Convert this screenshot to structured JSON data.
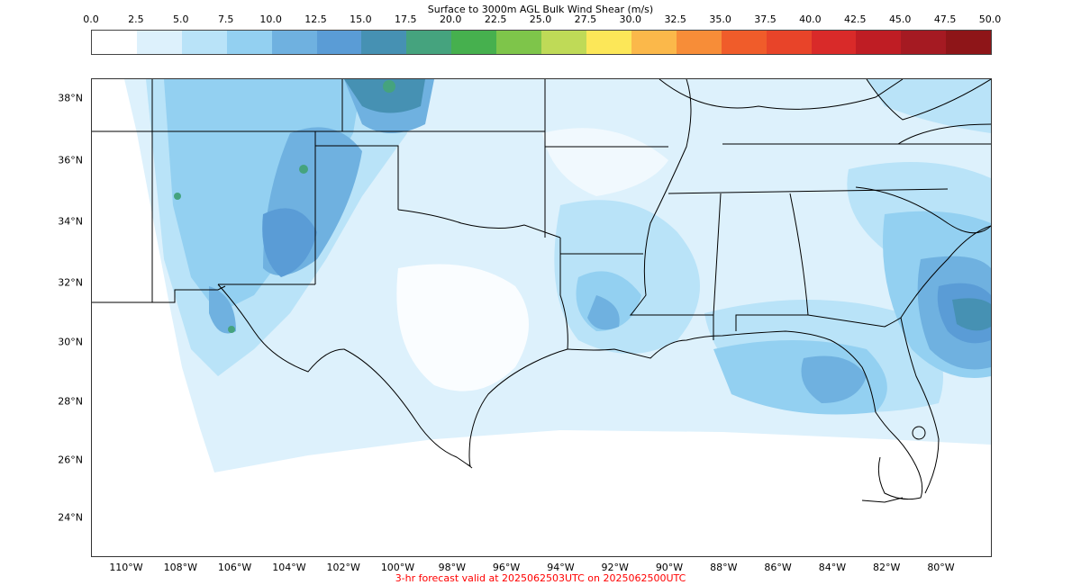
{
  "colorbar": {
    "title": "Surface to 3000m AGL Bulk Wind Shear (m/s)",
    "ticks": [
      "0.0",
      "2.5",
      "5.0",
      "7.5",
      "10.0",
      "12.5",
      "15.0",
      "17.5",
      "20.0",
      "22.5",
      "25.0",
      "27.5",
      "30.0",
      "32.5",
      "35.0",
      "37.5",
      "40.0",
      "42.5",
      "45.0",
      "47.5",
      "50.0"
    ],
    "colors": [
      "#ffffff",
      "#ddf1fc",
      "#b9e3f8",
      "#93d0f1",
      "#6fb1e0",
      "#5a9cd6",
      "#4691b3",
      "#45a37e",
      "#46b04e",
      "#7ec54a",
      "#bfda57",
      "#fce758",
      "#fbb84a",
      "#f78d38",
      "#f05c2a",
      "#e84429",
      "#d92a29",
      "#bf1d24",
      "#a51a22",
      "#8e1518"
    ]
  },
  "map": {
    "lat_labels": [
      "38°N",
      "36°N",
      "34°N",
      "32°N",
      "30°N",
      "28°N",
      "26°N",
      "24°N"
    ],
    "lon_labels": [
      "110°W",
      "108°W",
      "106°W",
      "104°W",
      "102°W",
      "100°W",
      "98°W",
      "96°W",
      "94°W",
      "92°W",
      "90°W",
      "88°W",
      "86°W",
      "84°W",
      "82°W",
      "80°W"
    ],
    "land_color": "#ddf1fc",
    "border_color": "#000000"
  },
  "caption": "3-hr forecast valid at 2025062503UTC on 2025062500UTC"
}
